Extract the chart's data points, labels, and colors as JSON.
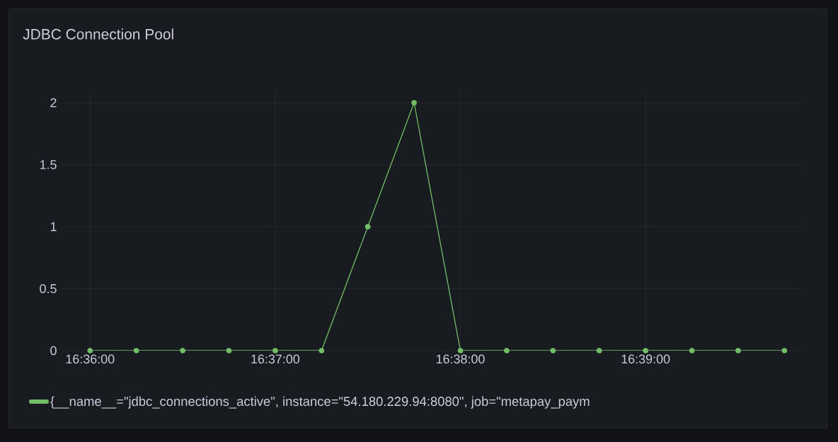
{
  "chart_data": {
    "type": "line",
    "title": "JDBC Connection Pool",
    "x": [
      16.6,
      16.6041667,
      16.6083333,
      16.6125,
      16.6166667,
      16.6208333,
      16.625,
      16.6291667,
      16.6333333,
      16.6375,
      16.6416667,
      16.6458333,
      16.65,
      16.6541667,
      16.6583333,
      16.6625
    ],
    "series": [
      {
        "name": "{__name__=\"jdbc_connections_active\", instance=\"54.180.229.94:8080\", job=\"metapay_paym",
        "color": "#73bf69",
        "values": [
          0,
          0,
          0,
          0,
          0,
          0,
          1,
          2,
          0,
          0,
          0,
          0,
          0,
          0,
          0,
          0
        ]
      }
    ],
    "xlim": [
      16.5975,
      16.6642
    ],
    "ylim": [
      0,
      2.1
    ],
    "xticks": [
      {
        "value": 16.6,
        "label": "16:36:00"
      },
      {
        "value": 16.6166667,
        "label": "16:37:00"
      },
      {
        "value": 16.6333333,
        "label": "16:38:00"
      },
      {
        "value": 16.65,
        "label": "16:39:00"
      }
    ],
    "yticks": [
      0,
      0.5,
      1,
      1.5,
      2
    ],
    "grid": true,
    "legend": "bottom",
    "marker": "circle"
  }
}
